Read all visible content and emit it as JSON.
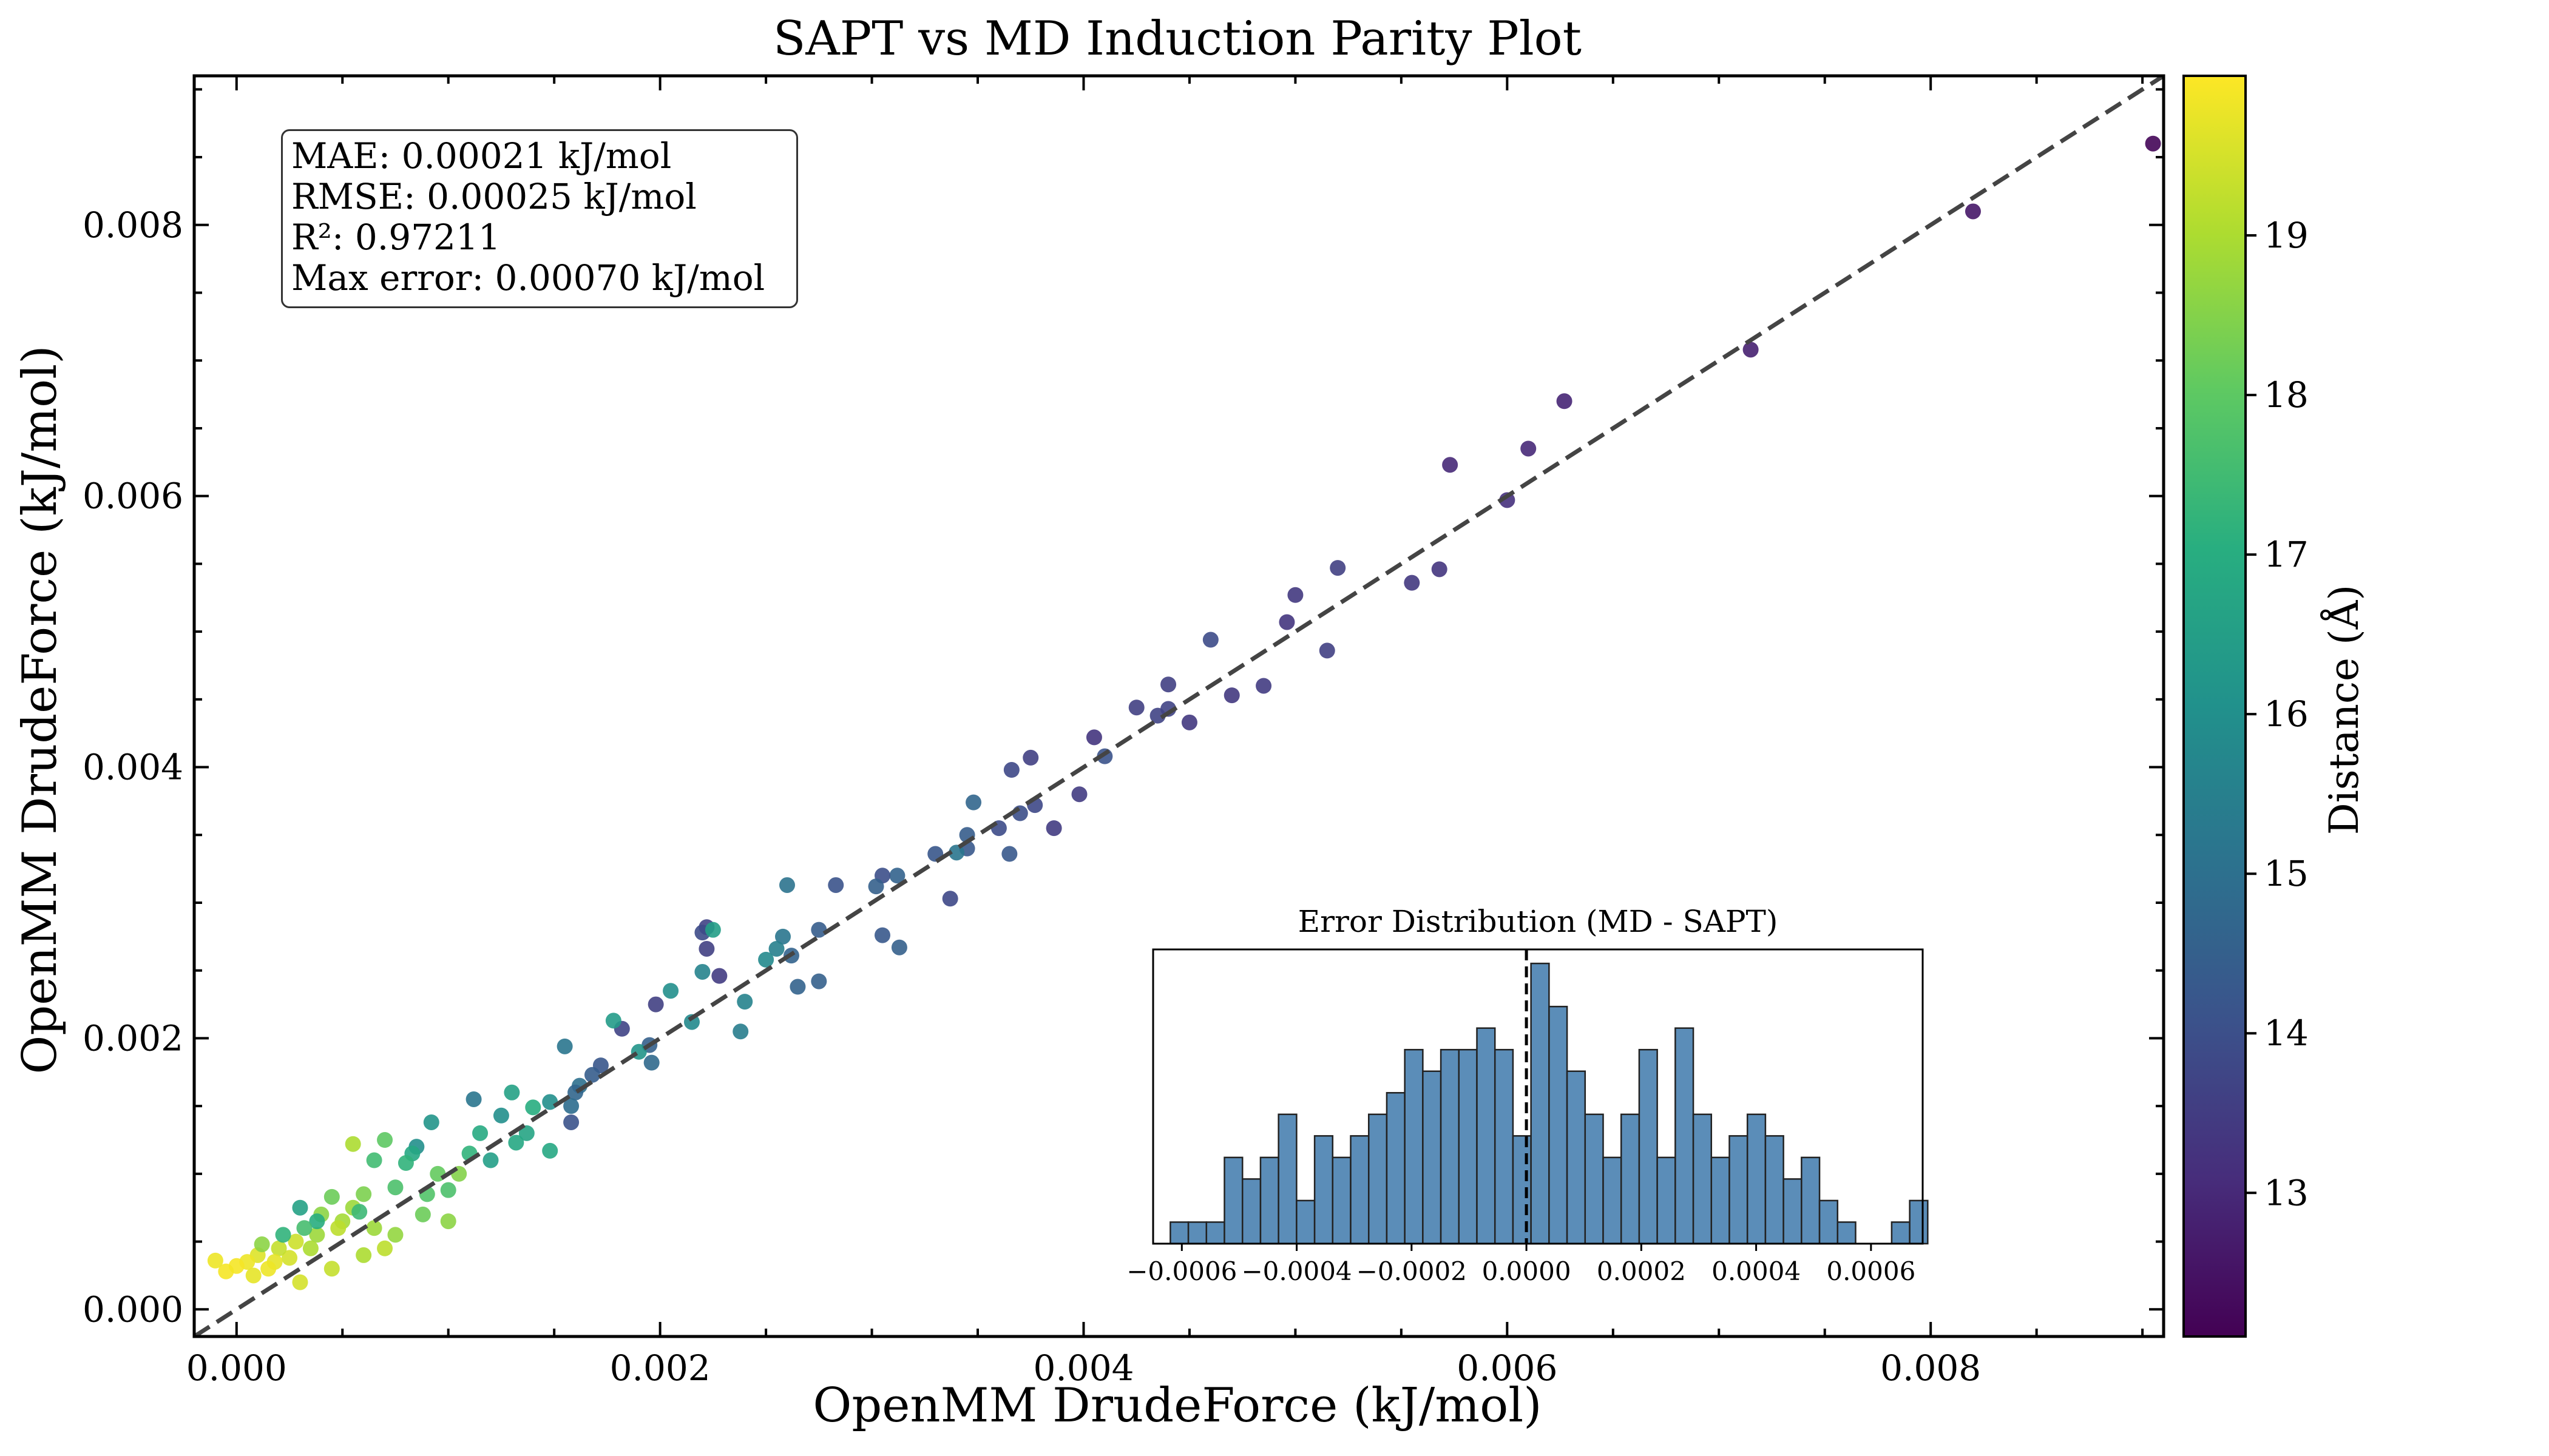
{
  "title": "SAPT vs MD Induction Parity Plot",
  "xlabel": "OpenMM DrudeForce (kJ/mol)",
  "ylabel": "OpenMM DrudeForce (kJ/mol)",
  "colorbar": {
    "label": "Distance (Å)",
    "range": [
      12.1,
      20.0
    ],
    "ticks": [
      13,
      14,
      15,
      16,
      17,
      18,
      19
    ],
    "colormap": "viridis"
  },
  "stats": {
    "mae": "MAE: 0.00021 kJ/mol",
    "rmse": "RMSE: 0.00025 kJ/mol",
    "r2": "R²: 0.97211",
    "max_error": "Max error: 0.00070 kJ/mol"
  },
  "inset": {
    "title": "Error Distribution (MD - SAPT)",
    "xlim": [
      -0.00065,
      0.00069
    ],
    "xticks": [
      "−0.0006",
      "−0.0004",
      "−0.0002",
      "0.0000",
      "0.0002",
      "0.0004",
      "0.0006"
    ],
    "bin_start": -0.00062,
    "bin_width": 3.14e-05,
    "counts": [
      1,
      1,
      1,
      4,
      3,
      4,
      6,
      2,
      5,
      4,
      5,
      6,
      7,
      9,
      8,
      9,
      9,
      10,
      9,
      5,
      13,
      11,
      8,
      6,
      4,
      6,
      9,
      4,
      10,
      6,
      4,
      5,
      6,
      5,
      3,
      4,
      2,
      1,
      0,
      0,
      1,
      2
    ],
    "mean_line": 0.0,
    "bar_color": "#5b8db8"
  },
  "chart_data": {
    "type": "scatter",
    "title": "SAPT vs MD Induction Parity Plot",
    "xlabel": "OpenMM DrudeForce (kJ/mol)",
    "ylabel": "OpenMM DrudeForce (kJ/mol)",
    "xlim": [
      -0.0002,
      0.0091
    ],
    "ylim": [
      -0.0002,
      0.0091
    ],
    "xticks": [
      "0.000",
      "0.002",
      "0.004",
      "0.006",
      "0.008"
    ],
    "yticks": [
      "0.000",
      "0.002",
      "0.004",
      "0.006",
      "0.008"
    ],
    "reference_line": "y = x (dashed)",
    "color_by": "Distance (Å)",
    "points": [
      [
        0.00905,
        0.0086,
        12.2
      ],
      [
        0.0082,
        0.0081,
        12.6
      ],
      [
        0.00715,
        0.00708,
        12.8
      ],
      [
        0.00627,
        0.0067,
        12.9
      ],
      [
        0.00573,
        0.00623,
        13.0
      ],
      [
        0.0061,
        0.00635,
        13.0
      ],
      [
        0.006,
        0.00597,
        13.2
      ],
      [
        0.00568,
        0.00546,
        13.3
      ],
      [
        0.00555,
        0.00536,
        13.4
      ],
      [
        0.0052,
        0.00547,
        13.6
      ],
      [
        0.005,
        0.00527,
        13.4
      ],
      [
        0.00496,
        0.00507,
        13.3
      ],
      [
        0.00515,
        0.00486,
        13.6
      ],
      [
        0.00485,
        0.0046,
        13.5
      ],
      [
        0.0047,
        0.00453,
        13.4
      ],
      [
        0.0046,
        0.00494,
        13.9
      ],
      [
        0.0045,
        0.00433,
        13.4
      ],
      [
        0.0044,
        0.00461,
        13.6
      ],
      [
        0.00435,
        0.00438,
        13.7
      ],
      [
        0.0044,
        0.00443,
        13.7
      ],
      [
        0.00425,
        0.00444,
        13.6
      ],
      [
        0.0041,
        0.00408,
        14.1
      ],
      [
        0.00405,
        0.00422,
        13.3
      ],
      [
        0.00398,
        0.0038,
        13.5
      ],
      [
        0.00386,
        0.00355,
        13.5
      ],
      [
        0.00375,
        0.00407,
        13.6
      ],
      [
        0.00377,
        0.00372,
        13.8
      ],
      [
        0.00366,
        0.00398,
        13.8
      ],
      [
        0.0037,
        0.00366,
        14.0
      ],
      [
        0.00365,
        0.00336,
        14.3
      ],
      [
        0.0036,
        0.00355,
        13.9
      ],
      [
        0.00348,
        0.00374,
        14.7
      ],
      [
        0.00345,
        0.0035,
        14.4
      ],
      [
        0.00345,
        0.0034,
        14.3
      ],
      [
        0.00337,
        0.00303,
        13.8
      ],
      [
        0.0033,
        0.00336,
        14.2
      ],
      [
        0.0034,
        0.00337,
        15.2
      ],
      [
        0.00312,
        0.0032,
        14.6
      ],
      [
        0.00305,
        0.0032,
        14.0
      ],
      [
        0.00313,
        0.00267,
        14.5
      ],
      [
        0.00305,
        0.00276,
        14.3
      ],
      [
        0.00302,
        0.00312,
        14.5
      ],
      [
        0.00283,
        0.00313,
        14.1
      ],
      [
        0.00275,
        0.0028,
        14.4
      ],
      [
        0.00275,
        0.00242,
        14.5
      ],
      [
        0.00262,
        0.00261,
        14.6
      ],
      [
        0.00265,
        0.00238,
        14.6
      ],
      [
        0.0026,
        0.00313,
        15.1
      ],
      [
        0.00258,
        0.00275,
        15.2
      ],
      [
        0.00255,
        0.00266,
        15.5
      ],
      [
        0.0025,
        0.00258,
        15.8
      ],
      [
        0.0024,
        0.00227,
        15.6
      ],
      [
        0.00238,
        0.00205,
        15.4
      ],
      [
        0.00228,
        0.00246,
        13.5
      ],
      [
        0.00222,
        0.00282,
        13.7
      ],
      [
        0.0022,
        0.00278,
        13.9
      ],
      [
        0.00225,
        0.0028,
        16.5
      ],
      [
        0.00222,
        0.00266,
        13.6
      ],
      [
        0.0022,
        0.00249,
        15.6
      ],
      [
        0.00215,
        0.00212,
        15.8
      ],
      [
        0.00205,
        0.00235,
        16.0
      ],
      [
        0.00198,
        0.00225,
        13.6
      ],
      [
        0.00195,
        0.00195,
        14.5
      ],
      [
        0.00196,
        0.00182,
        14.8
      ],
      [
        0.0019,
        0.0019,
        16.2
      ],
      [
        0.00182,
        0.00207,
        13.7
      ],
      [
        0.00178,
        0.00213,
        16.4
      ],
      [
        0.00172,
        0.0018,
        14.2
      ],
      [
        0.00168,
        0.00173,
        14.4
      ],
      [
        0.00162,
        0.00165,
        15.0
      ],
      [
        0.00155,
        0.00194,
        15.2
      ],
      [
        0.0016,
        0.0016,
        14.7
      ],
      [
        0.00158,
        0.0015,
        14.9
      ],
      [
        0.00158,
        0.00138,
        14.1
      ],
      [
        0.00148,
        0.00153,
        16.0
      ],
      [
        0.00148,
        0.00117,
        16.8
      ],
      [
        0.0014,
        0.00149,
        17.0
      ],
      [
        0.00137,
        0.0013,
        16.7
      ],
      [
        0.0013,
        0.0016,
        16.6
      ],
      [
        0.00132,
        0.00123,
        16.8
      ],
      [
        0.00125,
        0.00143,
        16.0
      ],
      [
        0.0012,
        0.0011,
        16.5
      ],
      [
        0.00115,
        0.0013,
        16.9
      ],
      [
        0.00112,
        0.00155,
        15.2
      ],
      [
        0.0011,
        0.00115,
        17.2
      ],
      [
        0.00105,
        0.001,
        18.5
      ],
      [
        0.001,
        0.00088,
        17.7
      ],
      [
        0.00095,
        0.001,
        18.1
      ],
      [
        0.00092,
        0.00138,
        16.2
      ],
      [
        0.0009,
        0.00085,
        17.8
      ],
      [
        0.00085,
        0.0012,
        16.0
      ],
      [
        0.00083,
        0.00115,
        16.8
      ],
      [
        0.0008,
        0.00108,
        17.2
      ],
      [
        0.00075,
        0.0009,
        17.7
      ],
      [
        0.0007,
        0.00125,
        18.0
      ],
      [
        0.00065,
        0.0011,
        17.5
      ],
      [
        0.0006,
        0.00085,
        18.4
      ],
      [
        0.00055,
        0.00075,
        18.8
      ],
      [
        0.00055,
        0.00122,
        19.0
      ],
      [
        0.0005,
        0.00065,
        18.9
      ],
      [
        0.00048,
        0.0006,
        19.2
      ],
      [
        0.00045,
        0.00083,
        18.2
      ],
      [
        0.0004,
        0.0007,
        18.6
      ],
      [
        0.00038,
        0.00055,
        18.8
      ],
      [
        0.00035,
        0.00045,
        19.0
      ],
      [
        0.0003,
        0.00075,
        16.6
      ],
      [
        0.00028,
        0.0005,
        19.4
      ],
      [
        0.00025,
        0.00038,
        19.5
      ],
      [
        0.0002,
        0.00045,
        19.3
      ],
      [
        0.00018,
        0.00035,
        19.7
      ],
      [
        0.00015,
        0.0003,
        19.8
      ],
      [
        0.0001,
        0.0004,
        19.6
      ],
      [
        5e-05,
        0.00035,
        19.8
      ],
      [
        0.0,
        0.00032,
        19.9
      ],
      [
        -5e-05,
        0.00028,
        19.9
      ],
      [
        -0.0001,
        0.00036,
        19.8
      ],
      [
        8e-05,
        0.00025,
        19.7
      ],
      [
        0.0003,
        0.0002,
        19.5
      ],
      [
        0.00045,
        0.0003,
        19.3
      ],
      [
        0.0006,
        0.0004,
        19.0
      ],
      [
        0.00075,
        0.00055,
        18.7
      ],
      [
        0.00088,
        0.0007,
        18.2
      ],
      [
        0.001,
        0.00065,
        18.6
      ],
      [
        0.00038,
        0.00065,
        17.0
      ],
      [
        0.00058,
        0.00072,
        17.4
      ],
      [
        0.00065,
        0.0006,
        18.8
      ],
      [
        0.0007,
        0.00045,
        19.2
      ],
      [
        0.00032,
        0.0006,
        17.6
      ],
      [
        0.00022,
        0.00055,
        17.2
      ],
      [
        0.00012,
        0.00048,
        18.6
      ]
    ],
    "inset_histogram": {
      "title": "Error Distribution (MD - SAPT)",
      "bin_start": -0.00062,
      "bin_width": 3.14e-05,
      "counts": [
        1,
        1,
        1,
        4,
        3,
        4,
        6,
        2,
        5,
        4,
        5,
        6,
        7,
        9,
        8,
        9,
        9,
        10,
        9,
        5,
        13,
        11,
        8,
        6,
        4,
        6,
        9,
        4,
        10,
        6,
        4,
        5,
        6,
        5,
        3,
        4,
        2,
        1,
        0,
        0,
        1,
        2
      ]
    }
  }
}
